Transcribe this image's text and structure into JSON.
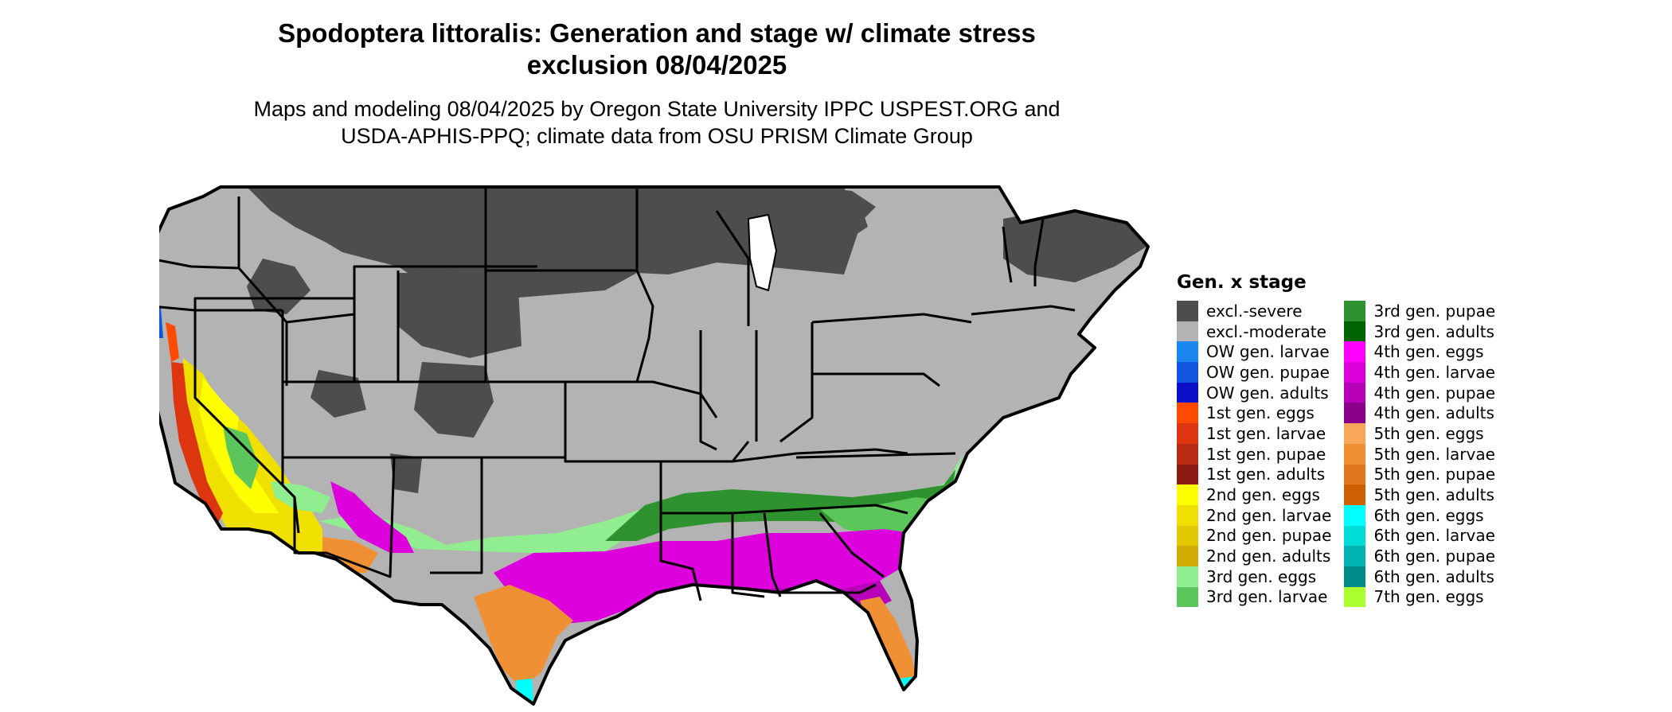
{
  "title_line1": "Spodoptera littoralis: Generation and stage w/ climate stress",
  "title_line2": "exclusion 08/04/2025",
  "subtitle_line1": "Maps and modeling 08/04/2025 by Oregon State University IPPC USPEST.ORG and",
  "subtitle_line2": "USDA-APHIS-PPQ; climate data from OSU PRISM Climate Group",
  "legend": {
    "title": "Gen. x stage",
    "columns": [
      [
        {
          "label": "excl.-severe",
          "color": "#4d4d4d"
        },
        {
          "label": "excl.-moderate",
          "color": "#b3b3b3"
        },
        {
          "label": "OW gen. larvae",
          "color": "#1a86f0"
        },
        {
          "label": "OW gen. pupae",
          "color": "#1055e0"
        },
        {
          "label": "OW gen. adults",
          "color": "#0a10c8"
        },
        {
          "label": "1st gen. eggs",
          "color": "#ff4a00"
        },
        {
          "label": "1st gen. larvae",
          "color": "#dd3510"
        },
        {
          "label": "1st gen. pupae",
          "color": "#b82a12"
        },
        {
          "label": "1st gen. adults",
          "color": "#8e1a14"
        },
        {
          "label": "2nd gen. eggs",
          "color": "#ffff00"
        },
        {
          "label": "2nd gen. larvae",
          "color": "#f0e000"
        },
        {
          "label": "2nd gen. pupae",
          "color": "#e2c800"
        },
        {
          "label": "2nd gen. adults",
          "color": "#d0ac00"
        },
        {
          "label": "3rd gen. eggs",
          "color": "#90ee90"
        },
        {
          "label": "3rd gen. larvae",
          "color": "#5cc65c"
        }
      ],
      [
        {
          "label": "3rd gen. pupae",
          "color": "#2e932e"
        },
        {
          "label": "3rd gen. adults",
          "color": "#006400"
        },
        {
          "label": "4th gen. eggs",
          "color": "#ff00ff"
        },
        {
          "label": "4th gen. larvae",
          "color": "#dd00dd"
        },
        {
          "label": "4th gen. pupae",
          "color": "#b800b8"
        },
        {
          "label": "4th gen. adults",
          "color": "#8b008b"
        },
        {
          "label": "5th gen. eggs",
          "color": "#f8a65a"
        },
        {
          "label": "5th gen. larvae",
          "color": "#f09035"
        },
        {
          "label": "5th gen. pupae",
          "color": "#e07820"
        },
        {
          "label": "5th gen. adults",
          "color": "#cd6000"
        },
        {
          "label": "6th gen. eggs",
          "color": "#00ffff"
        },
        {
          "label": "6th gen. larvae",
          "color": "#00dcd6"
        },
        {
          "label": "6th gen. pupae",
          "color": "#00b3b3"
        },
        {
          "label": "6th gen. adults",
          "color": "#008b8b"
        },
        {
          "label": "7th gen. eggs",
          "color": "#adff2f"
        }
      ]
    ]
  },
  "map_colors": {
    "severe": "#4d4d4d",
    "moderate": "#b3b3b3",
    "gen3_pupae": "#2e932e",
    "gen3_larvae": "#5cc65c",
    "gen3_eggs": "#90ee90",
    "gen4_larvae": "#dd00dd",
    "gen4_pupae": "#b800b8",
    "gen5_larvae": "#f09035",
    "gen2_eggs": "#ffff00",
    "gen2_larvae": "#f0e000",
    "gen1_larvae": "#dd3510",
    "gen1_eggs": "#ff4a00",
    "ow_pupae": "#1055e0",
    "gen6_eggs": "#00ffff",
    "state_border": "#000000"
  }
}
